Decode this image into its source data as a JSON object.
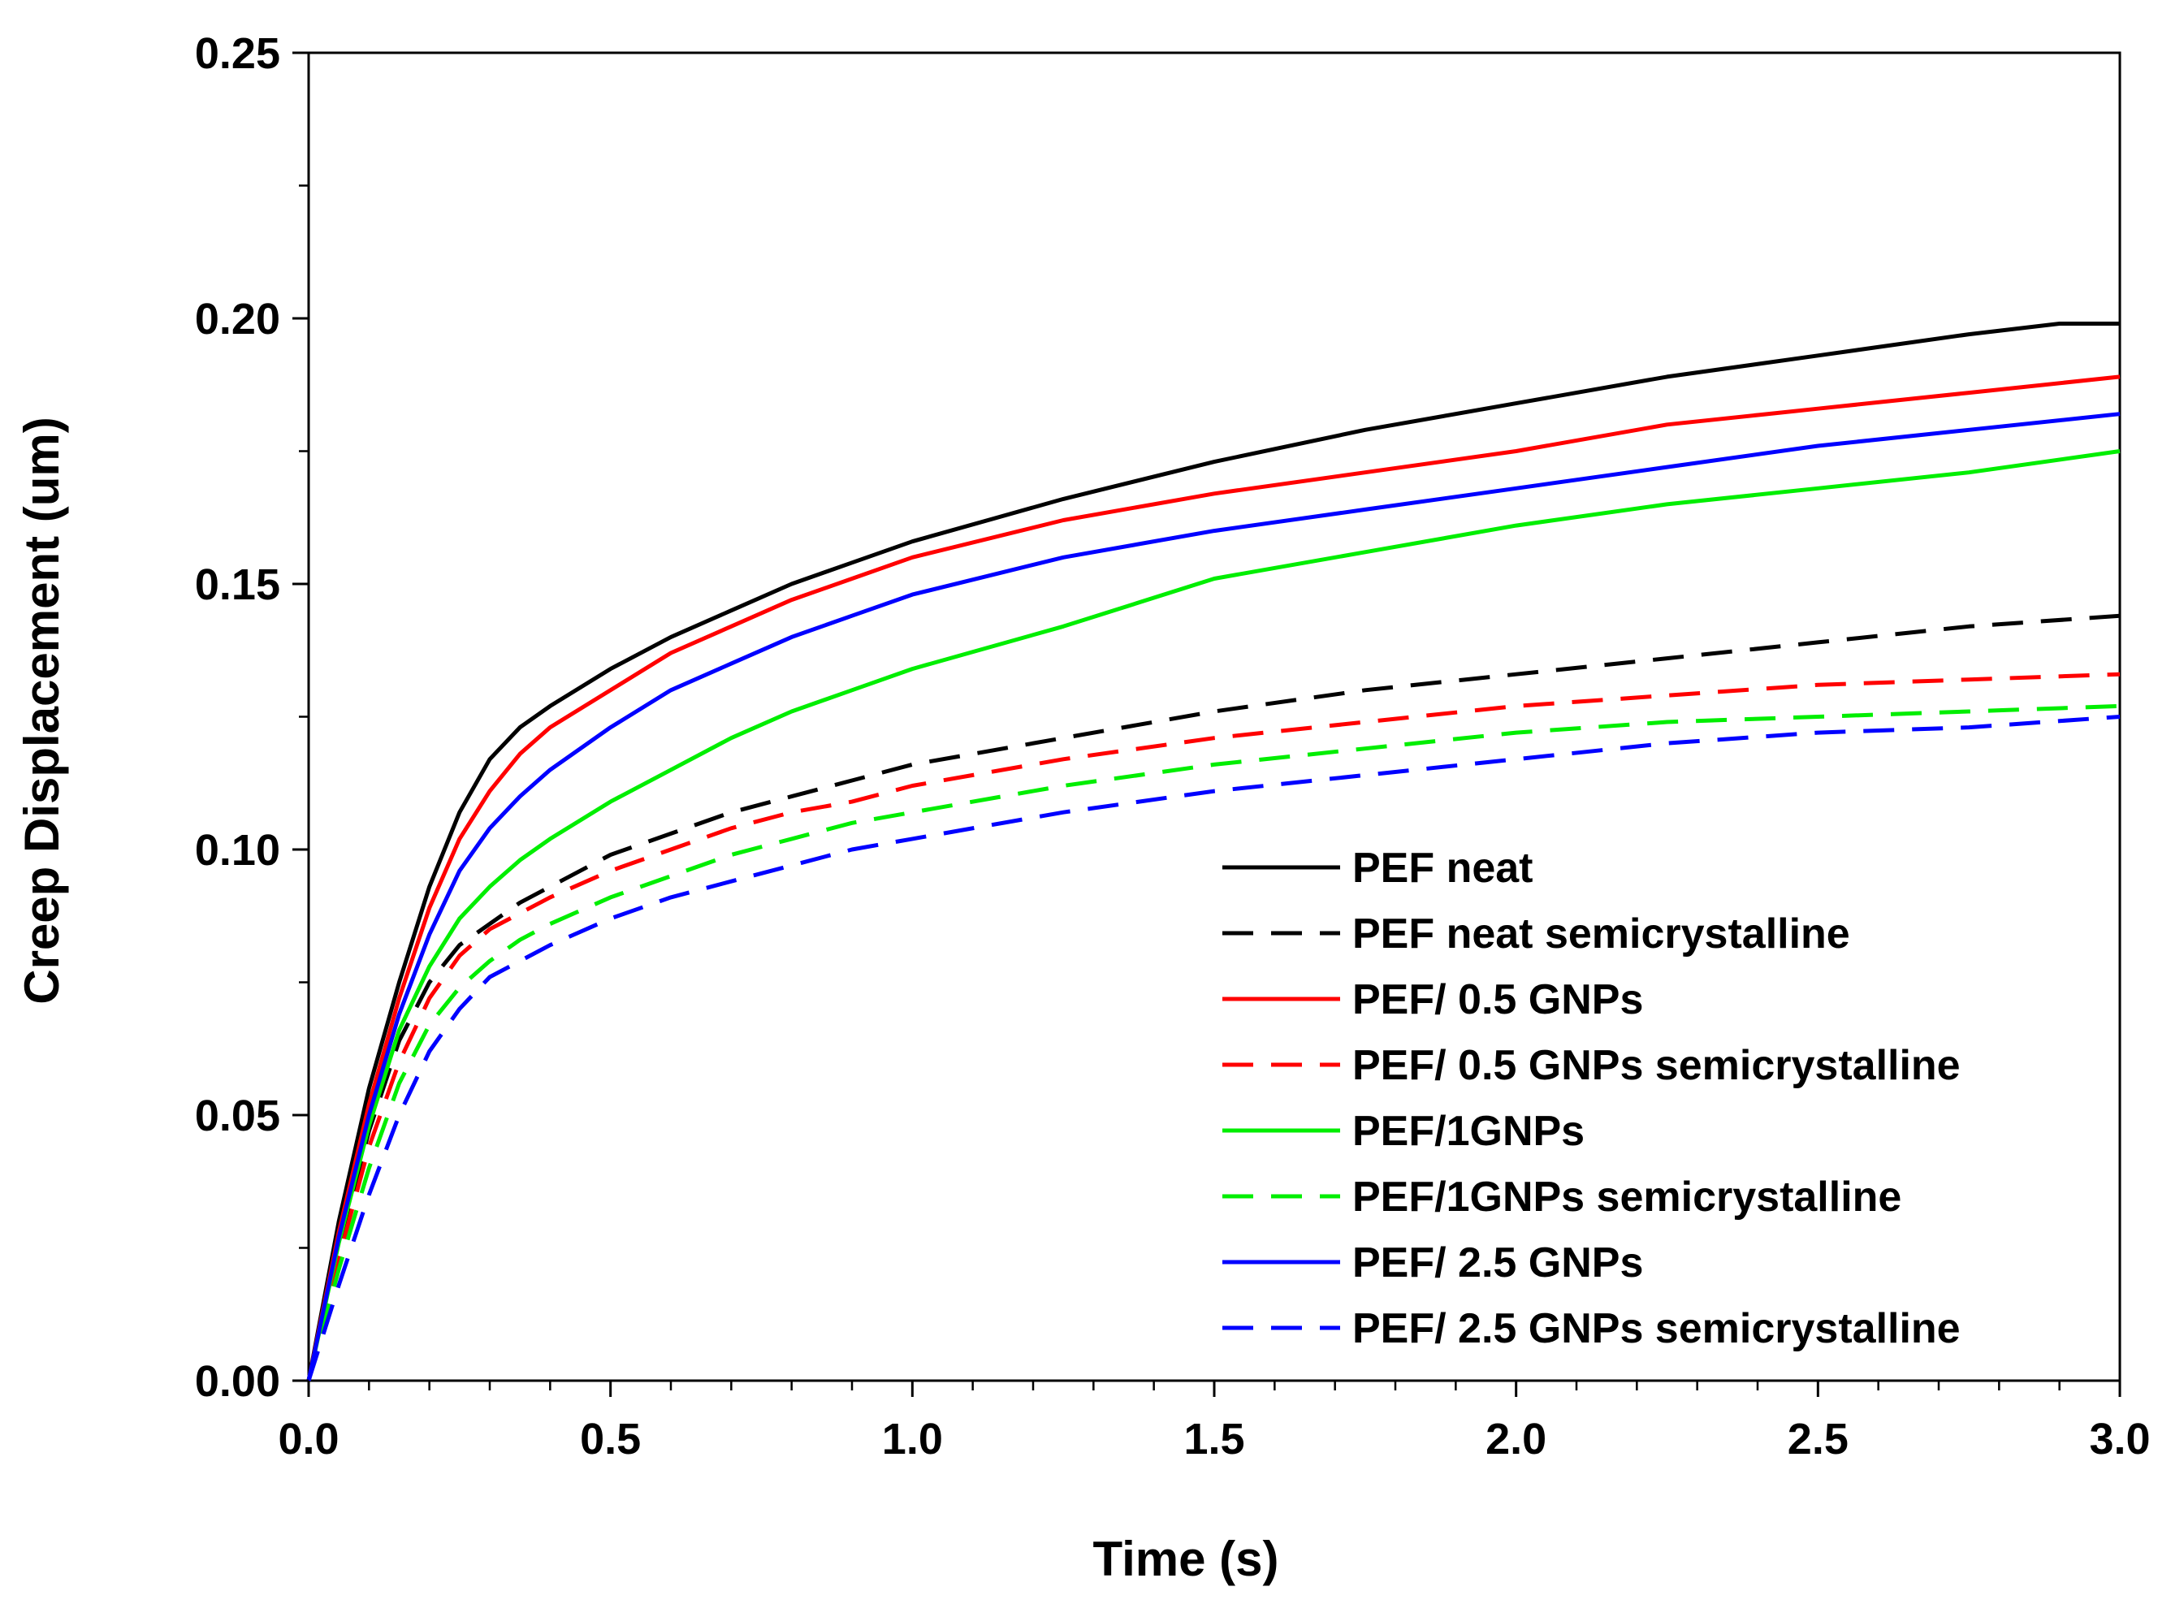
{
  "chart_data": {
    "type": "line",
    "title": "",
    "xlabel": "Time (s)",
    "ylabel": "Creep Displacement (um)",
    "xlim": [
      0,
      3.0
    ],
    "ylim": [
      0,
      0.25
    ],
    "xticks": [
      "0.0",
      "0.5",
      "1.0",
      "1.5",
      "2.0",
      "2.5",
      "3.0"
    ],
    "yticks": [
      "0.00",
      "0.05",
      "0.10",
      "0.15",
      "0.20",
      "0.25"
    ],
    "grid": false,
    "legend_position": "bottom-right",
    "series": [
      {
        "name": "PEF neat",
        "color": "#000000",
        "style": "solid",
        "points": [
          [
            0,
            0
          ],
          [
            0.05,
            0.03
          ],
          [
            0.1,
            0.055
          ],
          [
            0.15,
            0.075
          ],
          [
            0.2,
            0.093
          ],
          [
            0.25,
            0.107
          ],
          [
            0.3,
            0.117
          ],
          [
            0.35,
            0.123
          ],
          [
            0.4,
            0.127
          ],
          [
            0.5,
            0.134
          ],
          [
            0.6,
            0.14
          ],
          [
            0.7,
            0.145
          ],
          [
            0.8,
            0.15
          ],
          [
            0.9,
            0.154
          ],
          [
            1.0,
            0.158
          ],
          [
            1.25,
            0.166
          ],
          [
            1.5,
            0.173
          ],
          [
            1.75,
            0.179
          ],
          [
            2.0,
            0.184
          ],
          [
            2.25,
            0.189
          ],
          [
            2.5,
            0.193
          ],
          [
            2.75,
            0.197
          ],
          [
            2.9,
            0.199
          ],
          [
            3.0,
            0.199
          ]
        ]
      },
      {
        "name": "PEF neat semicrystalline",
        "color": "#000000",
        "style": "dashed",
        "points": [
          [
            0,
            0
          ],
          [
            0.05,
            0.025
          ],
          [
            0.1,
            0.047
          ],
          [
            0.15,
            0.064
          ],
          [
            0.2,
            0.075
          ],
          [
            0.25,
            0.082
          ],
          [
            0.3,
            0.086
          ],
          [
            0.35,
            0.09
          ],
          [
            0.4,
            0.093
          ],
          [
            0.5,
            0.099
          ],
          [
            0.6,
            0.103
          ],
          [
            0.7,
            0.107
          ],
          [
            0.8,
            0.11
          ],
          [
            0.9,
            0.113
          ],
          [
            1.0,
            0.116
          ],
          [
            1.25,
            0.121
          ],
          [
            1.5,
            0.126
          ],
          [
            1.75,
            0.13
          ],
          [
            2.0,
            0.133
          ],
          [
            2.25,
            0.136
          ],
          [
            2.5,
            0.139
          ],
          [
            2.75,
            0.142
          ],
          [
            3.0,
            0.144
          ]
        ]
      },
      {
        "name": "PEF/ 0.5 GNPs",
        "color": "#ff0000",
        "style": "solid",
        "points": [
          [
            0,
            0
          ],
          [
            0.05,
            0.028
          ],
          [
            0.1,
            0.052
          ],
          [
            0.15,
            0.072
          ],
          [
            0.2,
            0.089
          ],
          [
            0.25,
            0.102
          ],
          [
            0.3,
            0.111
          ],
          [
            0.35,
            0.118
          ],
          [
            0.4,
            0.123
          ],
          [
            0.5,
            0.13
          ],
          [
            0.6,
            0.137
          ],
          [
            0.7,
            0.142
          ],
          [
            0.8,
            0.147
          ],
          [
            0.9,
            0.151
          ],
          [
            1.0,
            0.155
          ],
          [
            1.25,
            0.162
          ],
          [
            1.5,
            0.167
          ],
          [
            1.75,
            0.171
          ],
          [
            2.0,
            0.175
          ],
          [
            2.25,
            0.18
          ],
          [
            2.5,
            0.183
          ],
          [
            2.75,
            0.186
          ],
          [
            3.0,
            0.189
          ]
        ]
      },
      {
        "name": "PEF/ 0.5 GNPs semicrystalline",
        "color": "#ff0000",
        "style": "dashed",
        "points": [
          [
            0,
            0
          ],
          [
            0.05,
            0.023
          ],
          [
            0.1,
            0.044
          ],
          [
            0.15,
            0.06
          ],
          [
            0.2,
            0.072
          ],
          [
            0.25,
            0.08
          ],
          [
            0.3,
            0.085
          ],
          [
            0.35,
            0.088
          ],
          [
            0.4,
            0.091
          ],
          [
            0.5,
            0.096
          ],
          [
            0.6,
            0.1
          ],
          [
            0.7,
            0.104
          ],
          [
            0.8,
            0.107
          ],
          [
            0.9,
            0.109
          ],
          [
            1.0,
            0.112
          ],
          [
            1.25,
            0.117
          ],
          [
            1.5,
            0.121
          ],
          [
            1.75,
            0.124
          ],
          [
            2.0,
            0.127
          ],
          [
            2.25,
            0.129
          ],
          [
            2.5,
            0.131
          ],
          [
            2.75,
            0.132
          ],
          [
            3.0,
            0.133
          ]
        ]
      },
      {
        "name": "PEF/1GNPs",
        "color": "#00ee00",
        "style": "solid",
        "points": [
          [
            0,
            0
          ],
          [
            0.05,
            0.026
          ],
          [
            0.1,
            0.048
          ],
          [
            0.15,
            0.066
          ],
          [
            0.2,
            0.078
          ],
          [
            0.25,
            0.087
          ],
          [
            0.3,
            0.093
          ],
          [
            0.35,
            0.098
          ],
          [
            0.4,
            0.102
          ],
          [
            0.5,
            0.109
          ],
          [
            0.6,
            0.115
          ],
          [
            0.7,
            0.121
          ],
          [
            0.8,
            0.126
          ],
          [
            0.9,
            0.13
          ],
          [
            1.0,
            0.134
          ],
          [
            1.25,
            0.142
          ],
          [
            1.5,
            0.151
          ],
          [
            1.75,
            0.156
          ],
          [
            2.0,
            0.161
          ],
          [
            2.25,
            0.165
          ],
          [
            2.5,
            0.168
          ],
          [
            2.75,
            0.171
          ],
          [
            3.0,
            0.175
          ]
        ]
      },
      {
        "name": "PEF/1GNPs semicrystalline",
        "color": "#00ee00",
        "style": "dashed",
        "points": [
          [
            0,
            0
          ],
          [
            0.05,
            0.021
          ],
          [
            0.1,
            0.04
          ],
          [
            0.15,
            0.056
          ],
          [
            0.2,
            0.067
          ],
          [
            0.25,
            0.074
          ],
          [
            0.3,
            0.079
          ],
          [
            0.35,
            0.083
          ],
          [
            0.4,
            0.086
          ],
          [
            0.5,
            0.091
          ],
          [
            0.6,
            0.095
          ],
          [
            0.7,
            0.099
          ],
          [
            0.8,
            0.102
          ],
          [
            0.9,
            0.105
          ],
          [
            1.0,
            0.107
          ],
          [
            1.25,
            0.112
          ],
          [
            1.5,
            0.116
          ],
          [
            1.75,
            0.119
          ],
          [
            2.0,
            0.122
          ],
          [
            2.25,
            0.124
          ],
          [
            2.5,
            0.125
          ],
          [
            2.75,
            0.126
          ],
          [
            3.0,
            0.127
          ]
        ]
      },
      {
        "name": "PEF/ 2.5 GNPs",
        "color": "#0000ff",
        "style": "solid",
        "points": [
          [
            0,
            0
          ],
          [
            0.05,
            0.027
          ],
          [
            0.1,
            0.05
          ],
          [
            0.15,
            0.069
          ],
          [
            0.2,
            0.084
          ],
          [
            0.25,
            0.096
          ],
          [
            0.3,
            0.104
          ],
          [
            0.35,
            0.11
          ],
          [
            0.4,
            0.115
          ],
          [
            0.5,
            0.123
          ],
          [
            0.6,
            0.13
          ],
          [
            0.7,
            0.135
          ],
          [
            0.8,
            0.14
          ],
          [
            0.9,
            0.144
          ],
          [
            1.0,
            0.148
          ],
          [
            1.25,
            0.155
          ],
          [
            1.5,
            0.16
          ],
          [
            1.75,
            0.164
          ],
          [
            2.0,
            0.168
          ],
          [
            2.25,
            0.172
          ],
          [
            2.5,
            0.176
          ],
          [
            2.75,
            0.179
          ],
          [
            3.0,
            0.182
          ]
        ]
      },
      {
        "name": "PEF/ 2.5 GNPs semicrystalline",
        "color": "#0000ff",
        "style": "dashed",
        "points": [
          [
            0,
            0
          ],
          [
            0.05,
            0.018
          ],
          [
            0.1,
            0.035
          ],
          [
            0.15,
            0.05
          ],
          [
            0.2,
            0.062
          ],
          [
            0.25,
            0.07
          ],
          [
            0.3,
            0.076
          ],
          [
            0.35,
            0.079
          ],
          [
            0.4,
            0.082
          ],
          [
            0.5,
            0.087
          ],
          [
            0.6,
            0.091
          ],
          [
            0.7,
            0.094
          ],
          [
            0.8,
            0.097
          ],
          [
            0.9,
            0.1
          ],
          [
            1.0,
            0.102
          ],
          [
            1.25,
            0.107
          ],
          [
            1.5,
            0.111
          ],
          [
            1.75,
            0.114
          ],
          [
            2.0,
            0.117
          ],
          [
            2.25,
            0.12
          ],
          [
            2.5,
            0.122
          ],
          [
            2.75,
            0.123
          ],
          [
            3.0,
            0.125
          ]
        ]
      }
    ]
  }
}
